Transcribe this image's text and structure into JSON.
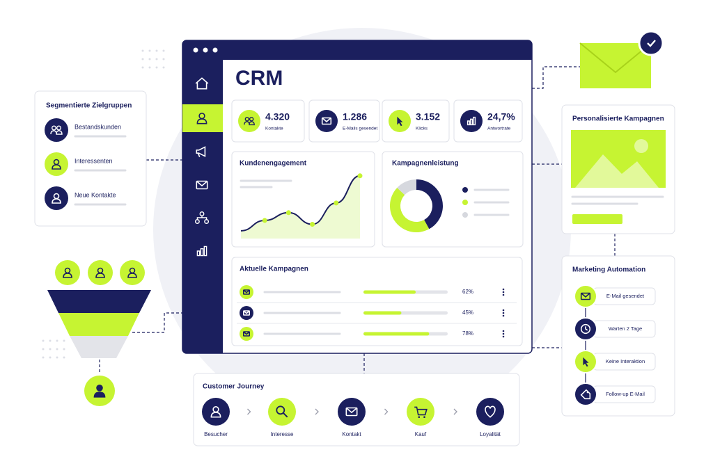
{
  "crm": {
    "title": "CRM",
    "kpis": [
      {
        "value": "4.320",
        "label": "Kontakte"
      },
      {
        "value": "1.286",
        "label": "E-Mails gesendet"
      },
      {
        "value": "3.152",
        "label": "Klicks"
      },
      {
        "value": "24,7%",
        "label": "Antwortrate"
      }
    ],
    "engagement": {
      "title": "Kundenengagement",
      "type": "line",
      "values": [
        12,
        28,
        40,
        22,
        55,
        97
      ],
      "ylim": [
        0,
        100
      ],
      "color": "#c6f432"
    },
    "performance": {
      "title": "Kampagnenleistung",
      "type": "pie",
      "values": [
        42,
        45,
        13
      ],
      "colors": [
        "#1b1f5e",
        "#c6f432",
        "#d6d8de"
      ]
    },
    "campaigns": {
      "title": "Aktuelle Kampagnen",
      "values": [
        62,
        45,
        78
      ],
      "value_labels": [
        "62%",
        "45%",
        "78%"
      ],
      "xlim": [
        0,
        100
      ],
      "color": "#c6f432"
    }
  },
  "segments": {
    "title": "Segmentierte Zielgruppen",
    "items": [
      "Bestandskunden",
      "Interessenten",
      "Neue Kontakte"
    ]
  },
  "personalized": {
    "title": "Personalisierte Kampagnen"
  },
  "automation": {
    "title": "Marketing Automation",
    "steps": [
      "E-Mail gesendet",
      "Warten 2 Tage",
      "Keine Interaktion",
      "Follow-up E-Mail"
    ]
  },
  "journey": {
    "title": "Customer Journey",
    "steps": [
      "Besucher",
      "Interesse",
      "Kontakt",
      "Kauf",
      "Loyalität"
    ]
  }
}
